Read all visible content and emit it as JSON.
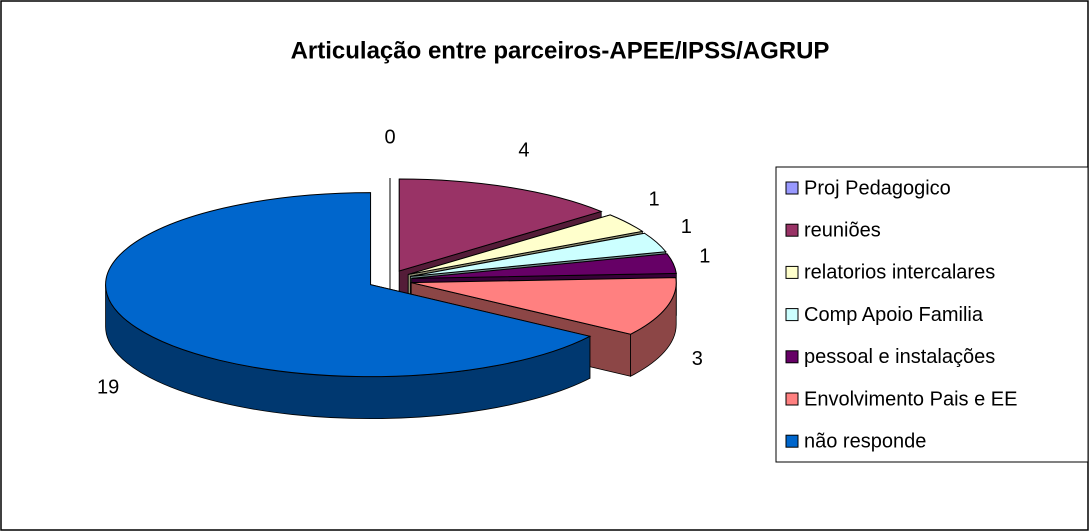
{
  "chart_data": {
    "type": "pie3d",
    "title": "Articulação entre parceiros-APEE/IPSS/AGRUP",
    "series": [
      {
        "name": "Proj Pedagogico",
        "color": "#9999ff",
        "values": [
          0
        ]
      },
      {
        "name": "reuniões",
        "color": "#993366",
        "values": [
          4
        ]
      },
      {
        "name": "relatorios intercalares",
        "color": "#ffffcc",
        "values": [
          1
        ]
      },
      {
        "name": "Comp Apoio Familia",
        "color": "#ccffff",
        "values": [
          1
        ]
      },
      {
        "name": "pessoal e instalações",
        "color": "#660066",
        "values": [
          1
        ]
      },
      {
        "name": "Envolvimento Pais e EE",
        "color": "#ff8080",
        "values": [
          3
        ]
      },
      {
        "name": "não responde",
        "color": "#0066cc",
        "values": [
          19
        ]
      }
    ],
    "legend": "right"
  }
}
